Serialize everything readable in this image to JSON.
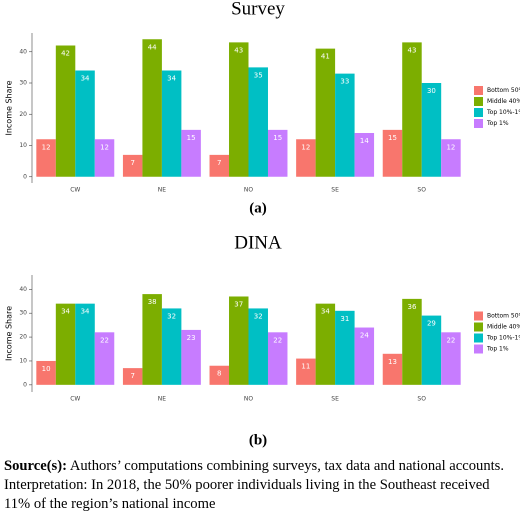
{
  "chart_data": [
    {
      "type": "bar",
      "title": "Survey",
      "subtitle": "(a)",
      "y_label": "Income Share",
      "categories": [
        "CW",
        "NE",
        "NO",
        "SE",
        "SO"
      ],
      "series": [
        {
          "name": "Bottom 50%",
          "color": "#F8766D",
          "values": [
            12,
            7,
            7,
            12,
            15
          ]
        },
        {
          "name": "Middle 40%",
          "color": "#7CAE00",
          "values": [
            42,
            44,
            43,
            41,
            43
          ]
        },
        {
          "name": "Top 10%-1%",
          "color": "#00BFC4",
          "values": [
            34,
            34,
            35,
            33,
            30
          ]
        },
        {
          "name": "Top 1%",
          "color": "#C77CFF",
          "values": [
            12,
            15,
            15,
            14,
            12
          ]
        }
      ],
      "ylim": [
        -2,
        46
      ],
      "yticks": [
        0,
        10,
        20,
        30,
        40
      ],
      "legend": "right"
    },
    {
      "type": "bar",
      "title": "DINA",
      "subtitle": "(b)",
      "y_label": "Income Share",
      "categories": [
        "CW",
        "NE",
        "NO",
        "SE",
        "SO"
      ],
      "series": [
        {
          "name": "Bottom 50%",
          "color": "#F8766D",
          "values": [
            10,
            7,
            8,
            11,
            13
          ]
        },
        {
          "name": "Middle 40%",
          "color": "#7CAE00",
          "values": [
            34,
            38,
            37,
            34,
            36
          ]
        },
        {
          "name": "Top 10%-1%",
          "color": "#00BFC4",
          "values": [
            34,
            32,
            32,
            31,
            29
          ]
        },
        {
          "name": "Top 1%",
          "color": "#C77CFF",
          "values": [
            22,
            23,
            22,
            24,
            22
          ]
        }
      ],
      "ylim": [
        -3,
        46
      ],
      "yticks": [
        0,
        10,
        20,
        30,
        40
      ],
      "legend": "right"
    }
  ],
  "caption": {
    "label": "Source(s):",
    "text": "Authors’ computations combining surveys, tax data and national accounts. Interpretation: In 2018, the 50% poorer individuals living in the Southeast received 11% of the region’s national income"
  }
}
